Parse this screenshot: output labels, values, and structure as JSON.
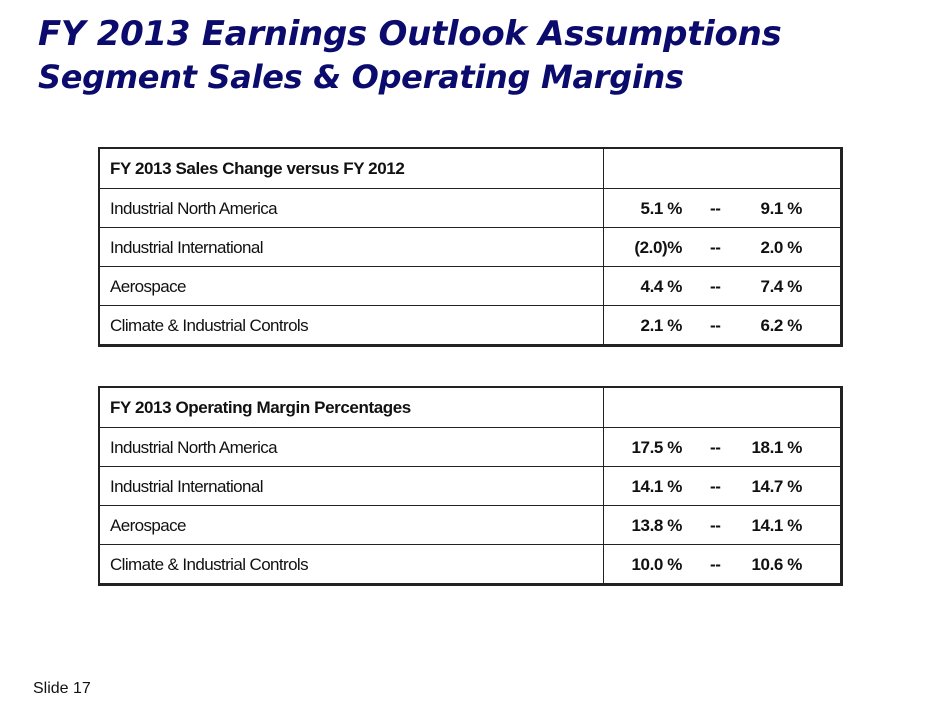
{
  "title": "FY 2013 Earnings Outlook Assumptions",
  "subtitle": "Segment Sales & Operating Margins",
  "sales_table": {
    "header": "FY 2013 Sales Change versus FY 2012",
    "rows": [
      {
        "segment": "Industrial North America",
        "low": "5.1 %",
        "sep": "--",
        "high": "9.1 %"
      },
      {
        "segment": "Industrial International",
        "low": "(2.0)%",
        "sep": "--",
        "high": "2.0 %"
      },
      {
        "segment": "Aerospace",
        "low": "4.4 %",
        "sep": "--",
        "high": "7.4 %"
      },
      {
        "segment": "Climate & Industrial Controls",
        "low": "2.1 %",
        "sep": "--",
        "high": "6.2 %"
      }
    ]
  },
  "margin_table": {
    "header": "FY 2013 Operating Margin Percentages",
    "rows": [
      {
        "segment": "Industrial North America",
        "low": "17.5 %",
        "sep": "--",
        "high": "18.1 %"
      },
      {
        "segment": "Industrial International",
        "low": "14.1 %",
        "sep": "--",
        "high": "14.7 %"
      },
      {
        "segment": "Aerospace",
        "low": "13.8 %",
        "sep": "--",
        "high": "14.1 %"
      },
      {
        "segment": "Climate & Industrial Controls",
        "low": "10.0 %",
        "sep": "--",
        "high": "10.6 %"
      }
    ]
  },
  "footer": "Slide 17"
}
